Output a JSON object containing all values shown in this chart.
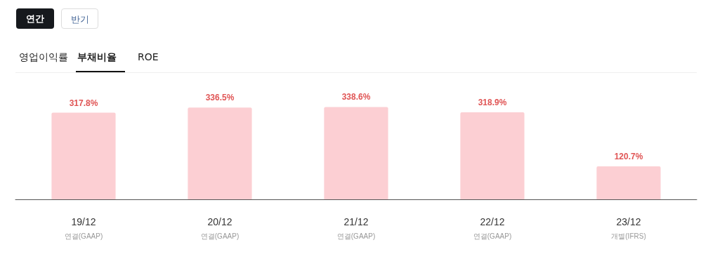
{
  "chart_data": {
    "type": "bar",
    "categories": [
      "19/12\n연결(GAAP)",
      "20/12\n연결(GAAP)",
      "21/12\n연결(GAAP)",
      "22/12\n연결(GAAP)",
      "23/12\n개별(IFRS)"
    ],
    "values": [
      317.8,
      336.5,
      338.6,
      318.9,
      120.7
    ],
    "value_labels": [
      "317.8%",
      "336.5%",
      "338.6%",
      "318.9%",
      "120.7%"
    ],
    "color": "#fccfd3",
    "annotations": [
      "연간",
      "반기",
      "영업이익률",
      "부채비율",
      "ROE"
    ]
  }
}
